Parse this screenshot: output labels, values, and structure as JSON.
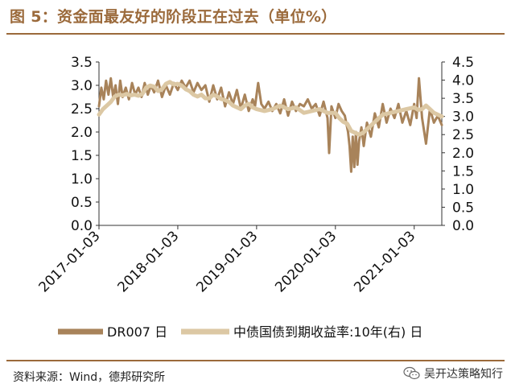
{
  "header": {
    "title": "图 5：资金面最友好的阶段正在过去（单位%）"
  },
  "footer": {
    "source": "资料来源：Wind，德邦研究所",
    "watermark": "吴开达策略知行"
  },
  "colors": {
    "brand": "#9b6a3b",
    "series1": "#a8835a",
    "series2": "#dcc8a4"
  },
  "chart_data": {
    "type": "line",
    "title": "资金面最友好的阶段正在过去（单位%）",
    "x_tick_labels": [
      "2017-01-03",
      "2018-01-03",
      "2019-01-03",
      "2020-01-03",
      "2021-01-03"
    ],
    "x_tick_positions": [
      0,
      1,
      2,
      3,
      4
    ],
    "x_range": [
      0,
      4.35
    ],
    "y_left": {
      "range": [
        0,
        3.5
      ],
      "ticks": [
        "0.0",
        "0.5",
        "1.0",
        "1.5",
        "2.0",
        "2.5",
        "3.0",
        "3.5"
      ]
    },
    "y_right": {
      "range": [
        0,
        4.5
      ],
      "ticks": [
        "0.0",
        "0.5",
        "1.0",
        "1.5",
        "2.0",
        "2.5",
        "3.0",
        "3.5",
        "4.0",
        "4.5"
      ]
    },
    "series": [
      {
        "name": "DR007 日",
        "axis": "left",
        "x": [
          0.0,
          0.03,
          0.06,
          0.09,
          0.12,
          0.15,
          0.18,
          0.21,
          0.24,
          0.27,
          0.3,
          0.34,
          0.38,
          0.42,
          0.46,
          0.5,
          0.54,
          0.58,
          0.62,
          0.66,
          0.7,
          0.75,
          0.8,
          0.85,
          0.9,
          0.95,
          1.0,
          1.05,
          1.1,
          1.15,
          1.2,
          1.25,
          1.3,
          1.35,
          1.4,
          1.45,
          1.5,
          1.55,
          1.6,
          1.65,
          1.7,
          1.75,
          1.8,
          1.85,
          1.9,
          1.95,
          1.98,
          2.02,
          2.06,
          2.1,
          2.15,
          2.2,
          2.25,
          2.3,
          2.35,
          2.4,
          2.45,
          2.5,
          2.55,
          2.6,
          2.65,
          2.7,
          2.75,
          2.8,
          2.85,
          2.9,
          2.92,
          2.95,
          3.0,
          3.04,
          3.08,
          3.12,
          3.16,
          3.18,
          3.2,
          3.22,
          3.24,
          3.26,
          3.28,
          3.3,
          3.33,
          3.36,
          3.4,
          3.45,
          3.5,
          3.55,
          3.6,
          3.65,
          3.7,
          3.75,
          3.8,
          3.85,
          3.9,
          3.95,
          4.0,
          4.03,
          4.06,
          4.1,
          4.15,
          4.2,
          4.25,
          4.3,
          4.35
        ],
        "values": [
          2.55,
          2.95,
          2.7,
          3.1,
          2.8,
          3.15,
          2.75,
          3.0,
          2.6,
          3.1,
          2.75,
          2.95,
          2.7,
          3.05,
          2.8,
          2.95,
          2.75,
          3.05,
          2.8,
          3.0,
          2.85,
          3.1,
          2.75,
          3.0,
          2.8,
          3.05,
          2.9,
          3.1,
          2.95,
          3.1,
          2.85,
          3.05,
          2.9,
          3.0,
          2.65,
          3.0,
          2.7,
          2.95,
          2.55,
          2.85,
          2.6,
          2.9,
          2.5,
          2.8,
          2.45,
          2.7,
          2.55,
          3.05,
          2.6,
          2.5,
          2.65,
          2.45,
          2.6,
          2.4,
          2.7,
          2.35,
          2.65,
          2.45,
          2.6,
          2.55,
          2.7,
          2.5,
          2.6,
          2.35,
          2.65,
          2.3,
          1.55,
          2.55,
          2.3,
          2.6,
          2.45,
          2.35,
          2.0,
          1.7,
          1.15,
          1.9,
          1.25,
          2.0,
          1.3,
          1.8,
          2.1,
          1.7,
          2.2,
          1.9,
          2.4,
          2.1,
          2.6,
          2.2,
          2.5,
          2.3,
          2.6,
          2.2,
          2.45,
          2.15,
          2.6,
          2.3,
          3.15,
          2.3,
          1.75,
          2.5,
          2.2,
          2.35,
          2.15
        ]
      },
      {
        "name": "中债国债到期收益率:10年(右) 日",
        "axis": "right",
        "x": [
          0.0,
          0.05,
          0.1,
          0.15,
          0.2,
          0.25,
          0.3,
          0.35,
          0.4,
          0.45,
          0.5,
          0.55,
          0.6,
          0.65,
          0.7,
          0.75,
          0.8,
          0.85,
          0.9,
          0.95,
          1.0,
          1.05,
          1.1,
          1.15,
          1.2,
          1.25,
          1.3,
          1.35,
          1.4,
          1.45,
          1.5,
          1.55,
          1.6,
          1.65,
          1.7,
          1.75,
          1.8,
          1.85,
          1.9,
          1.95,
          2.0,
          2.1,
          2.2,
          2.3,
          2.4,
          2.5,
          2.6,
          2.7,
          2.8,
          2.9,
          3.0,
          3.05,
          3.1,
          3.15,
          3.2,
          3.25,
          3.3,
          3.35,
          3.4,
          3.5,
          3.6,
          3.7,
          3.8,
          3.9,
          4.0,
          4.05,
          4.1,
          4.15,
          4.2,
          4.25,
          4.3,
          4.35
        ],
        "values": [
          3.05,
          3.2,
          3.3,
          3.4,
          3.55,
          3.6,
          3.58,
          3.62,
          3.58,
          3.6,
          3.57,
          3.62,
          3.8,
          3.85,
          3.82,
          3.7,
          3.75,
          3.9,
          3.95,
          3.88,
          3.9,
          3.85,
          3.75,
          3.7,
          3.6,
          3.55,
          3.6,
          3.5,
          3.5,
          3.6,
          3.55,
          3.48,
          3.45,
          3.4,
          3.3,
          3.25,
          3.2,
          3.3,
          3.35,
          3.25,
          3.2,
          3.15,
          3.2,
          3.3,
          3.2,
          3.25,
          3.1,
          3.15,
          3.2,
          3.1,
          3.1,
          2.95,
          2.85,
          2.8,
          2.6,
          2.55,
          2.5,
          2.55,
          2.65,
          2.85,
          3.05,
          3.1,
          3.15,
          3.2,
          3.25,
          3.18,
          3.2,
          3.3,
          3.2,
          3.1,
          3.05,
          3.0
        ]
      }
    ],
    "legend": {
      "placement": "bottom"
    }
  }
}
